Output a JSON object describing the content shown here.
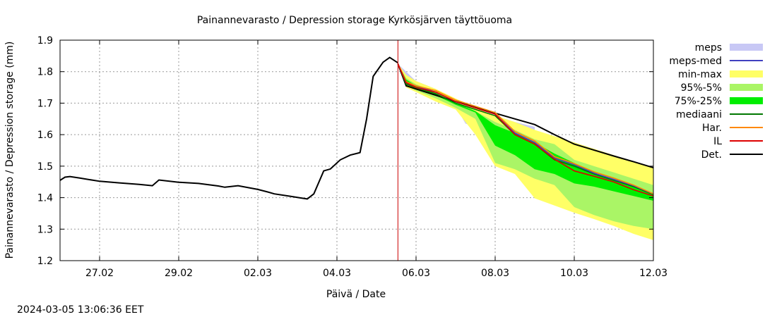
{
  "chart_data": {
    "type": "line",
    "title": "Painannevarasto / Depression storage   Kyrkösjärven täyttöuoma",
    "xlabel": "Päivä / Date",
    "ylabel": "Painannevarasto / Depression storage (mm)",
    "xlim": [
      "2024-02-26 00:00",
      "2024-03-12 00:00"
    ],
    "ylim": [
      1.2,
      1.9
    ],
    "x_ticks": [
      "27.02",
      "29.02",
      "02.03",
      "04.03",
      "06.03",
      "08.03",
      "10.03",
      "12.03"
    ],
    "y_ticks": [
      "1.2",
      "1.3",
      "1.4",
      "1.5",
      "1.6",
      "1.7",
      "1.8",
      "1.9"
    ],
    "grid": true,
    "legend_position": "right",
    "forecast_start": "2024-03-05 13:00",
    "timestamp": "2024-03-05 13:06:36 EET",
    "legend": [
      {
        "label": "meps",
        "color": "#c8c8f5",
        "style": "band"
      },
      {
        "label": "meps-med",
        "color": "#4040c0",
        "style": "line"
      },
      {
        "label": "min-max",
        "color": "#ffff66",
        "style": "band"
      },
      {
        "label": "95%-5%",
        "color": "#aaf566",
        "style": "band"
      },
      {
        "label": "75%-25%",
        "color": "#00ee00",
        "style": "band"
      },
      {
        "label": "mediaani",
        "color": "#007700",
        "style": "line"
      },
      {
        "label": "Har.",
        "color": "#ff8800",
        "style": "line"
      },
      {
        "label": "IL",
        "color": "#dd0000",
        "style": "line"
      },
      {
        "label": "Det.",
        "color": "#000000",
        "style": "line"
      }
    ],
    "observed": {
      "name": "Det.",
      "x": [
        "2024-02-26 00:00",
        "2024-02-26 03:00",
        "2024-02-26 06:00",
        "2024-02-26 12:00",
        "2024-02-27 00:00",
        "2024-02-27 12:00",
        "2024-02-28 00:00",
        "2024-02-28 08:00",
        "2024-02-28 12:00",
        "2024-02-29 00:00",
        "2024-02-29 12:00",
        "2024-03-01 00:00",
        "2024-03-01 04:00",
        "2024-03-01 12:00",
        "2024-03-02 00:00",
        "2024-03-02 06:00",
        "2024-03-02 10:00",
        "2024-03-02 20:00",
        "2024-03-03 02:00",
        "2024-03-03 06:00",
        "2024-03-03 10:00",
        "2024-03-03 16:00",
        "2024-03-03 20:00",
        "2024-03-04 02:00",
        "2024-03-04 08:00",
        "2024-03-04 14:00",
        "2024-03-04 18:00",
        "2024-03-04 22:00",
        "2024-03-05 04:00",
        "2024-03-05 08:00",
        "2024-03-05 13:00"
      ],
      "y": [
        1.455,
        1.465,
        1.467,
        1.462,
        1.452,
        1.447,
        1.442,
        1.438,
        1.456,
        1.449,
        1.445,
        1.437,
        1.433,
        1.438,
        1.426,
        1.418,
        1.412,
        1.404,
        1.399,
        1.396,
        1.412,
        1.485,
        1.491,
        1.52,
        1.535,
        1.543,
        1.65,
        1.785,
        1.83,
        1.845,
        1.828
      ]
    },
    "forecast_x": [
      "2024-03-05 13:00",
      "2024-03-05 18:00",
      "2024-03-06 00:00",
      "2024-03-06 12:00",
      "2024-03-07 00:00",
      "2024-03-07 12:00",
      "2024-03-08 00:00",
      "2024-03-08 12:00",
      "2024-03-09 00:00",
      "2024-03-09 12:00",
      "2024-03-10 00:00",
      "2024-03-10 12:00",
      "2024-03-11 00:00",
      "2024-03-11 12:00",
      "2024-03-12 00:00"
    ],
    "bands": {
      "min-max": {
        "low": [
          1.825,
          1.75,
          1.735,
          1.705,
          1.68,
          1.6,
          1.5,
          1.475,
          1.398,
          1.375,
          1.352,
          1.332,
          1.31,
          1.285,
          1.265
        ],
        "high": [
          1.825,
          1.79,
          1.77,
          1.745,
          1.715,
          1.685,
          1.66,
          1.64,
          1.615,
          1.595,
          1.575,
          1.555,
          1.535,
          1.515,
          1.495
        ]
      },
      "95%-5%": {
        "low": [
          1.825,
          1.755,
          1.74,
          1.715,
          1.685,
          1.65,
          1.51,
          1.49,
          1.46,
          1.44,
          1.37,
          1.345,
          1.325,
          1.31,
          1.3
        ],
        "high": [
          1.825,
          1.78,
          1.76,
          1.735,
          1.705,
          1.675,
          1.64,
          1.615,
          1.585,
          1.57,
          1.52,
          1.5,
          1.48,
          1.46,
          1.44
        ]
      },
      "75%-25%": {
        "low": [
          1.825,
          1.76,
          1.745,
          1.725,
          1.695,
          1.67,
          1.565,
          1.535,
          1.49,
          1.475,
          1.445,
          1.435,
          1.42,
          1.405,
          1.39
        ],
        "high": [
          1.825,
          1.775,
          1.755,
          1.73,
          1.7,
          1.675,
          1.63,
          1.605,
          1.575,
          1.54,
          1.51,
          1.48,
          1.455,
          1.435,
          1.41
        ]
      },
      "meps": {
        "x": [
          "2024-03-05 13:00",
          "2024-03-06 00:00",
          "2024-03-06 12:00",
          "2024-03-07 00:00",
          "2024-03-07 06:00",
          "2024-03-07 12:00",
          "2024-03-07 18:00",
          "2024-03-08 00:00",
          "2024-03-08 12:00",
          "2024-03-09 00:00"
        ],
        "low": [
          1.825,
          1.742,
          1.72,
          1.69,
          1.635,
          1.625,
          1.61,
          1.625,
          1.61,
          1.6
        ],
        "high": [
          1.825,
          1.77,
          1.745,
          1.71,
          1.69,
          1.68,
          1.66,
          1.66,
          1.64,
          1.625
        ]
      }
    },
    "series": [
      {
        "name": "Det.",
        "color": "#000000",
        "y": [
          1.825,
          1.755,
          1.745,
          1.725,
          1.705,
          1.688,
          1.668,
          1.65,
          1.632,
          1.6,
          1.57,
          1.551,
          1.532,
          1.514,
          1.495
        ]
      },
      {
        "name": "mediaani",
        "color": "#007700",
        "y": [
          1.825,
          1.76,
          1.75,
          1.73,
          1.7,
          1.68,
          1.66,
          1.6,
          1.57,
          1.52,
          1.5,
          1.475,
          1.455,
          1.435,
          1.41
        ]
      },
      {
        "name": "meps-med",
        "color": "#4040c0",
        "y": [
          1.825,
          1.765,
          1.755,
          1.735,
          1.705,
          1.685,
          1.665,
          1.605,
          1.575,
          1.525,
          1.505,
          1.478,
          1.458,
          1.438,
          1.412
        ]
      },
      {
        "name": "Har.",
        "color": "#ff8800",
        "y": [
          1.825,
          1.768,
          1.755,
          1.74,
          1.71,
          1.69,
          1.67,
          1.61,
          1.58,
          1.53,
          1.508,
          1.482,
          1.462,
          1.44,
          1.412
        ]
      },
      {
        "name": "IL",
        "color": "#dd0000",
        "y": [
          1.825,
          1.765,
          1.75,
          1.735,
          1.705,
          1.685,
          1.665,
          1.6,
          1.57,
          1.522,
          1.485,
          1.468,
          1.45,
          1.425,
          1.405
        ]
      }
    ]
  }
}
